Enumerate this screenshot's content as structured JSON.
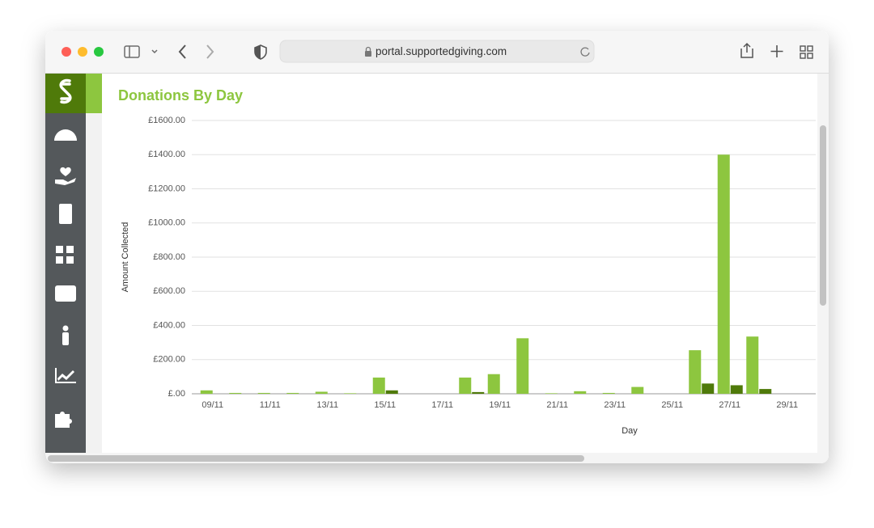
{
  "browser": {
    "url": "portal.supportedgiving.com"
  },
  "chart_data": {
    "type": "bar",
    "title": "Donations By Day",
    "ylabel": "Amount Collected",
    "xlabel": "Day",
    "categories": [
      "09/11",
      null,
      "11/11",
      null,
      "13/11",
      null,
      "15/11",
      null,
      "17/11",
      null,
      "19/11",
      null,
      "21/11",
      null,
      "23/11",
      null,
      "25/11",
      null,
      "27/11",
      null,
      "29/11"
    ],
    "series": [
      {
        "color": "#8dc63f",
        "values": [
          20,
          5,
          5,
          5,
          12,
          3,
          95,
          0,
          0,
          95,
          115,
          325,
          3,
          15,
          5,
          40,
          0,
          255,
          1400,
          335,
          0
        ]
      },
      {
        "color": "#4f7a0a",
        "values": [
          0,
          0,
          0,
          0,
          0,
          0,
          20,
          0,
          0,
          10,
          0,
          0,
          0,
          0,
          0,
          0,
          0,
          60,
          50,
          28,
          0
        ]
      }
    ],
    "ylim": [
      0,
      1600
    ],
    "yticks": [
      {
        "value": 0,
        "label": "£.00"
      },
      {
        "value": 200,
        "label": "£200.00"
      },
      {
        "value": 400,
        "label": "£400.00"
      },
      {
        "value": 600,
        "label": "£600.00"
      },
      {
        "value": 800,
        "label": "£800.00"
      },
      {
        "value": 1000,
        "label": "£1000.00"
      },
      {
        "value": 1200,
        "label": "£1200.00"
      },
      {
        "value": 1400,
        "label": "£1400.00"
      },
      {
        "value": 1600,
        "label": "£1600.00"
      }
    ],
    "grid": true
  }
}
